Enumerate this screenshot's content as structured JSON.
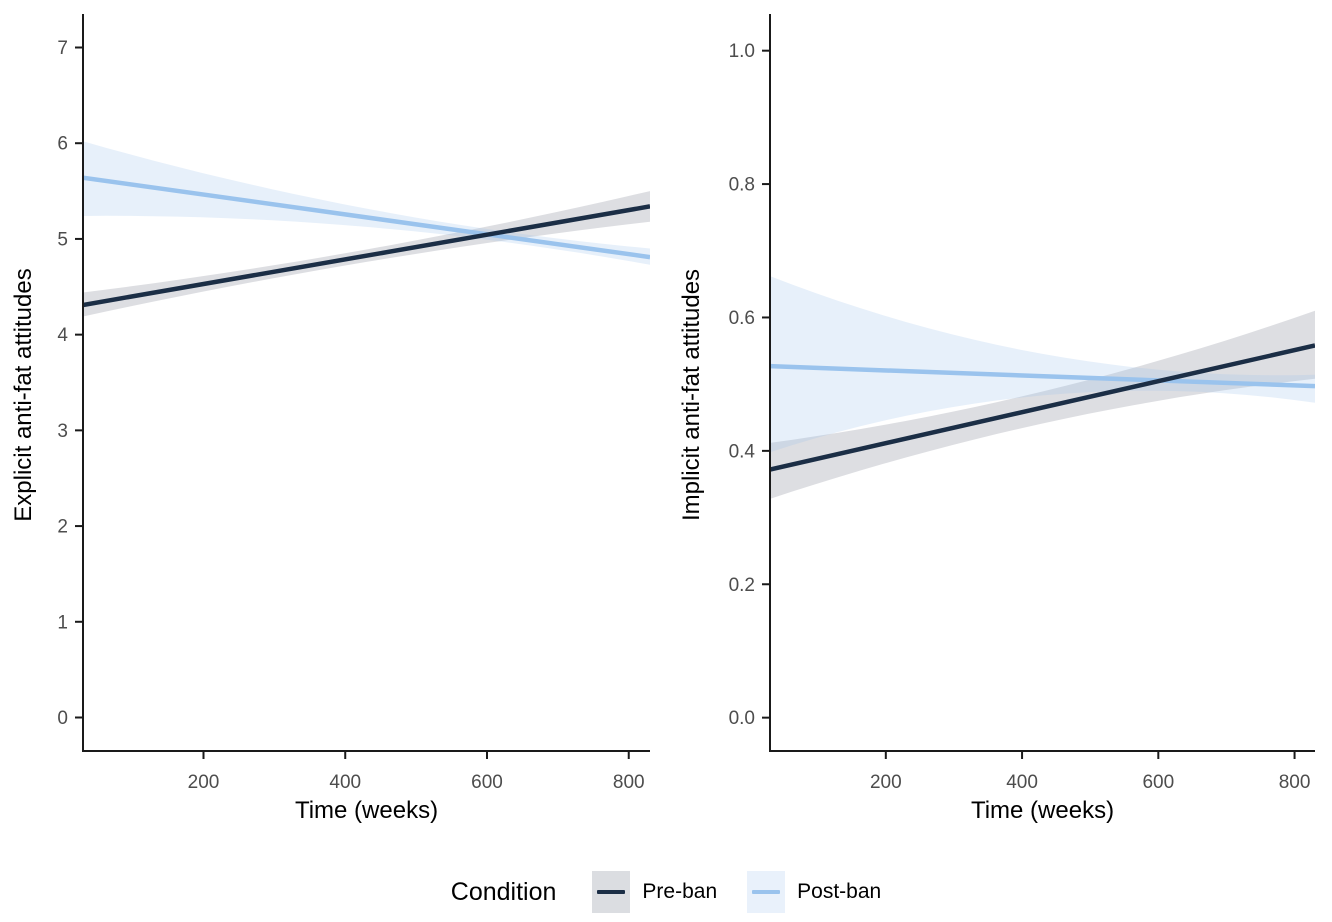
{
  "chart_data": [
    {
      "type": "line",
      "panel": "explicit",
      "xlabel": "Time (weeks)",
      "ylabel": "Explicit anti-fat attitudes",
      "x_domain": [
        30,
        830
      ],
      "y_domain": [
        -0.35,
        7.35
      ],
      "xticks": [
        200,
        400,
        600,
        800
      ],
      "xtick_labels": [
        "200",
        "400",
        "600",
        "800"
      ],
      "yticks": [
        0,
        1,
        2,
        3,
        4,
        5,
        6,
        7
      ],
      "ytick_labels": [
        "0",
        "1",
        "2",
        "3",
        "4",
        "5",
        "6",
        "7"
      ],
      "grid": "off",
      "series": [
        {
          "name": "Pre-ban",
          "line_color": "#1B2E46",
          "ribbon_color": "#646B7A",
          "ribbon_opacity": 0.22,
          "x": [
            30,
            830
          ],
          "y": [
            4.31,
            5.34
          ],
          "ci": {
            "left_lower": 4.19,
            "left_upper": 4.44,
            "right_lower": 5.18,
            "right_upper": 5.5,
            "pinch_x": 430,
            "pinch_half": 0.065
          }
        },
        {
          "name": "Post-ban",
          "line_color": "#9AC3ED",
          "ribbon_color": "#99C2EC",
          "ribbon_opacity": 0.24,
          "x": [
            30,
            830
          ],
          "y": [
            5.64,
            4.81
          ],
          "ci": {
            "left_lower": 5.24,
            "left_upper": 6.02,
            "right_lower": 4.73,
            "right_upper": 4.9,
            "pinch_x": 620,
            "pinch_half": 0.055
          }
        }
      ]
    },
    {
      "type": "line",
      "panel": "implicit",
      "xlabel": "Time (weeks)",
      "ylabel": "Implicit anti-fat attitudes",
      "x_domain": [
        30,
        830
      ],
      "y_domain": [
        -0.05,
        1.055
      ],
      "xticks": [
        200,
        400,
        600,
        800
      ],
      "xtick_labels": [
        "200",
        "400",
        "600",
        "800"
      ],
      "yticks": [
        0,
        0.2,
        0.4,
        0.6,
        0.8,
        1.0
      ],
      "ytick_labels": [
        "0.0",
        "0.2",
        "0.4",
        "0.6",
        "0.8",
        "1.0"
      ],
      "grid": "off",
      "series": [
        {
          "name": "Pre-ban",
          "line_color": "#1B2E46",
          "ribbon_color": "#646B7A",
          "ribbon_opacity": 0.22,
          "x": [
            30,
            830
          ],
          "y": [
            0.372,
            0.558
          ],
          "ci": {
            "left_lower": 0.328,
            "left_upper": 0.412,
            "right_lower": 0.508,
            "right_upper": 0.61,
            "pinch_x": 430,
            "pinch_half": 0.024
          }
        },
        {
          "name": "Post-ban",
          "line_color": "#9AC3ED",
          "ribbon_color": "#99C2EC",
          "ribbon_opacity": 0.24,
          "x": [
            30,
            830
          ],
          "y": [
            0.527,
            0.497
          ],
          "ci": {
            "left_lower": 0.398,
            "left_upper": 0.662,
            "right_lower": 0.472,
            "right_upper": 0.514,
            "pinch_x": 620,
            "pinch_half": 0.015
          }
        }
      ]
    }
  ],
  "legend": {
    "title": "Condition",
    "items": [
      {
        "label": "Pre-ban",
        "line_color": "#1B2E46",
        "swatch_color": "#DBDDE1"
      },
      {
        "label": "Post-ban",
        "line_color": "#9AC3ED",
        "swatch_color": "#E9F1FB"
      }
    ]
  },
  "style": {
    "axis_color": "#1A1A1A",
    "tick_label_color": "#4D4D4D",
    "background": "#FFFFFF"
  }
}
